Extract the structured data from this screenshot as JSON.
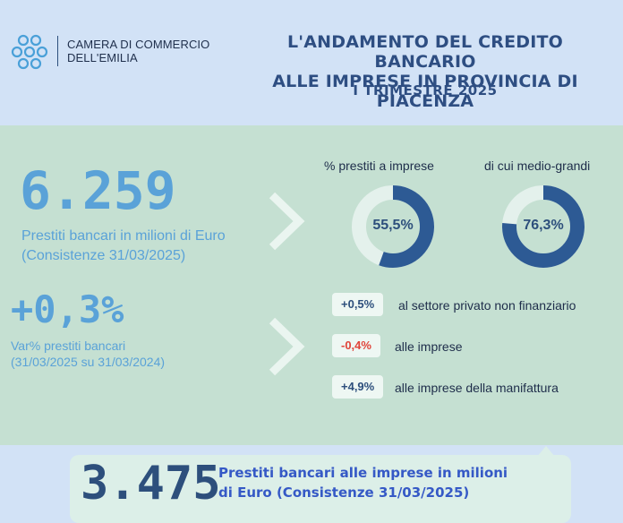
{
  "header": {
    "logo_line1": "CAMERA DI COMMERCIO",
    "logo_line2": "DELL'EMILIA",
    "title_line1": "L'ANDAMENTO DEL CREDITO BANCARIO",
    "title_line2": "ALLE IMPRESE IN PROVINCIA DI PIACENZA",
    "subtitle": "I TRIMESTRE 2025"
  },
  "stat1": {
    "value": "6.259",
    "desc_line1": "Prestiti bancari in milioni di Euro",
    "desc_line2": "(Consistenze 31/03/2025)"
  },
  "stat2": {
    "value": "+0,3%",
    "desc_line1": "Var% prestiti bancari",
    "desc_line2": "(31/03/2025 su 31/03/2024)"
  },
  "donuts": [
    {
      "label": "%  prestiti a imprese",
      "value_text": "55,5%",
      "value": 55.5
    },
    {
      "label": "di cui medio-grandi",
      "value_text": "76,3%",
      "value": 76.3
    }
  ],
  "variations": [
    {
      "value": "+0,5%",
      "text": "al settore privato non finanziario",
      "sign": "positive"
    },
    {
      "value": "-0,4%",
      "text": "alle imprese",
      "sign": "negative"
    },
    {
      "value": "+4,9%",
      "text": "alle imprese della manifattura",
      "sign": "positive"
    }
  ],
  "stat3": {
    "value": "3.475",
    "desc_line1": "Prestiti bancari alle imprese in milioni",
    "desc_line2": "di Euro (Consistenze 31/03/2025)"
  },
  "colors": {
    "accent_blue": "#5aa2d8",
    "dark_blue": "#2d4f7c",
    "donut_track": "#e4f1ec",
    "negative": "#e0443a",
    "panel_green": "#c5e0d2",
    "background": "#d2e2f6"
  },
  "icons": {
    "logo": "chamber-of-commerce-logo-icon",
    "arrow": "chevron-right-icon"
  }
}
